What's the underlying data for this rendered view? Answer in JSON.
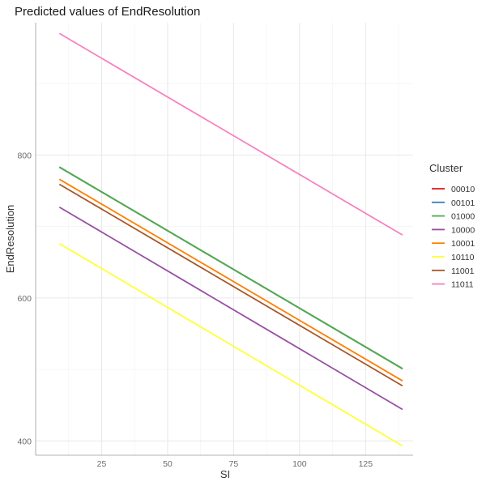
{
  "chart_data": {
    "type": "line",
    "title": "Predicted values of EndResolution",
    "xlabel": "SI",
    "ylabel": "EndResolution",
    "xlim": [
      0,
      143
    ],
    "ylim": [
      380,
      985
    ],
    "x_ticks": [
      25,
      50,
      75,
      100,
      125
    ],
    "y_ticks": [
      400,
      600,
      800
    ],
    "grid": true,
    "legend": {
      "title": "Cluster",
      "placement": "right"
    },
    "series": [
      {
        "name": "00010",
        "color": "#e41a1c",
        "x": [
          9,
          139
        ],
        "y": [
          783,
          501
        ]
      },
      {
        "name": "00101",
        "color": "#377eb8",
        "x": [
          9,
          139
        ],
        "y": [
          783,
          501
        ]
      },
      {
        "name": "01000",
        "color": "#4daf4a",
        "x": [
          9,
          139
        ],
        "y": [
          783,
          501
        ]
      },
      {
        "name": "10000",
        "color": "#984ea3",
        "x": [
          9,
          139
        ],
        "y": [
          727,
          444
        ]
      },
      {
        "name": "10001",
        "color": "#ff7f00",
        "x": [
          9,
          139
        ],
        "y": [
          766,
          484
        ]
      },
      {
        "name": "10110",
        "color": "#ffff33",
        "x": [
          9,
          139
        ],
        "y": [
          676,
          393
        ]
      },
      {
        "name": "11001",
        "color": "#a65628",
        "x": [
          9,
          139
        ],
        "y": [
          759,
          477
        ]
      },
      {
        "name": "11011",
        "color": "#f781bf",
        "x": [
          9,
          139
        ],
        "y": [
          970,
          688
        ]
      }
    ]
  }
}
